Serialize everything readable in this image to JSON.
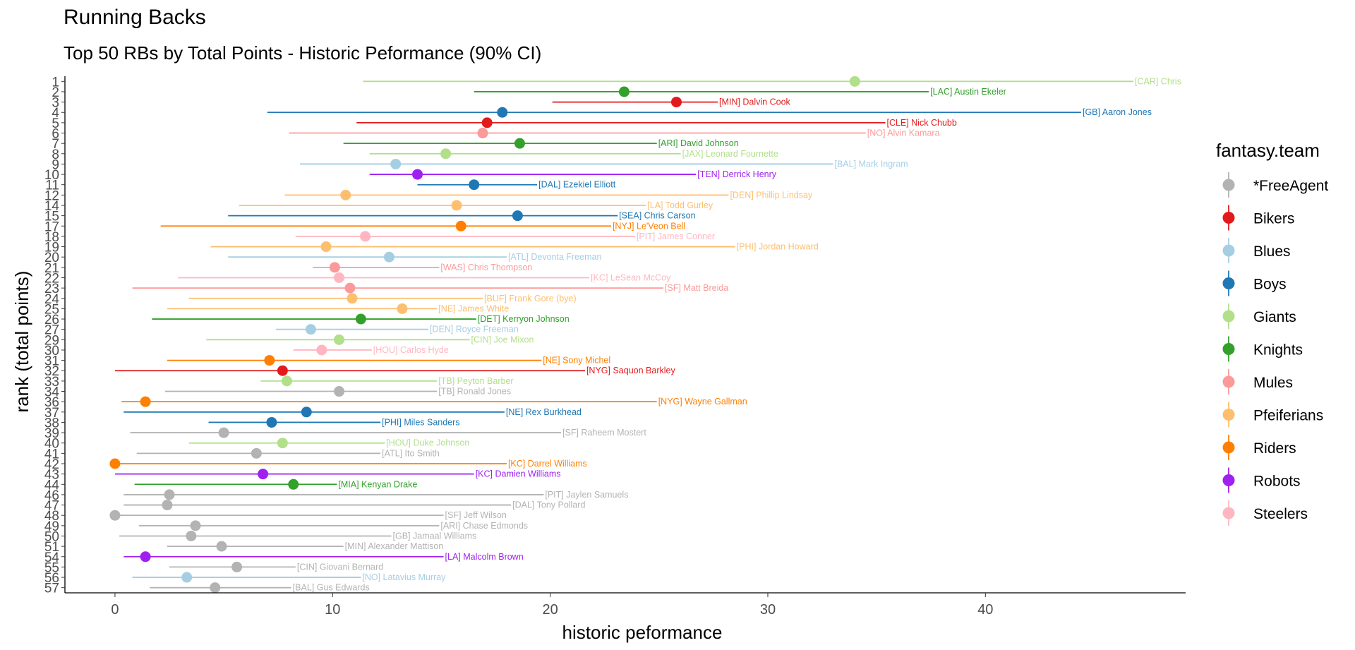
{
  "title": "Running Backs",
  "subtitle": "Top 50 RBs by Total Points - Historic Peformance (90% CI)",
  "team_colors": {
    "*FreeAgent": "#B3B3B3",
    "Bikers": "#E31A1C",
    "Blues": "#A6CEE3",
    "Boys": "#1F78B4",
    "Giants": "#B2DF8A",
    "Knights": "#33A02C",
    "Mules": "#FB9A99",
    "Pfeiferians": "#FDBF6F",
    "Riders": "#FF7F00",
    "Robots": "#A020F0",
    "Steelers": "#FFB6C1"
  },
  "chart_data": {
    "type": "point-range",
    "xlabel": "historic peformance",
    "ylabel": "rank (total points)",
    "xlim": [
      -2.3,
      49.2
    ],
    "xticks": [
      0,
      10,
      20,
      30,
      40
    ],
    "grid": false,
    "legend_title": "fantasy.team",
    "legend_position": "right",
    "legend": [
      "*FreeAgent",
      "Bikers",
      "Blues",
      "Boys",
      "Giants",
      "Knights",
      "Mules",
      "Pfeiferians",
      "Riders",
      "Robots",
      "Steelers"
    ],
    "rank_ticks": [
      "1",
      "2",
      "3",
      "4",
      "5",
      "6",
      "7",
      "8",
      "9",
      "10",
      "11",
      "12",
      "14",
      "15",
      "17",
      "18",
      "19",
      "20",
      "21",
      "22",
      "23",
      "24",
      "25",
      "26",
      "27",
      "29",
      "30",
      "31",
      "32",
      "33",
      "34",
      "36",
      "37",
      "38",
      "39",
      "40",
      "41",
      "42",
      "43",
      "44",
      "46",
      "47",
      "48",
      "49",
      "50",
      "51",
      "54",
      "55",
      "56",
      "57"
    ],
    "players": [
      {
        "rank": "1",
        "label": "[CAR] Christian McCaffrey",
        "display": "[CAR] Chris",
        "team": "Giants",
        "mean": 34.0,
        "low": 11.4,
        "high": 46.8
      },
      {
        "rank": "2",
        "label": "[LAC] Austin Ekeler",
        "team": "Knights",
        "mean": 23.4,
        "low": 16.5,
        "high": 37.4
      },
      {
        "rank": "3",
        "label": "[MIN] Dalvin Cook",
        "team": "Bikers",
        "mean": 25.8,
        "low": 20.1,
        "high": 27.7
      },
      {
        "rank": "4",
        "label": "[GB] Aaron Jones",
        "team": "Boys",
        "mean": 17.8,
        "low": 7.0,
        "high": 44.4
      },
      {
        "rank": "5",
        "label": "[CLE] Nick Chubb",
        "team": "Bikers",
        "mean": 17.1,
        "low": 11.1,
        "high": 35.4
      },
      {
        "rank": "6",
        "label": "[NO] Alvin Kamara",
        "team": "Mules",
        "mean": 16.9,
        "low": 8.0,
        "high": 34.5
      },
      {
        "rank": "7",
        "label": "[ARI] David Johnson",
        "team": "Knights",
        "mean": 18.6,
        "low": 10.5,
        "high": 24.9
      },
      {
        "rank": "8",
        "label": "[JAX] Leonard Fournette",
        "team": "Giants",
        "mean": 15.2,
        "low": 11.7,
        "high": 26.0
      },
      {
        "rank": "9",
        "label": "[BAL] Mark Ingram",
        "team": "Blues",
        "mean": 12.9,
        "low": 8.5,
        "high": 33.0
      },
      {
        "rank": "10",
        "label": "[TEN] Derrick Henry",
        "team": "Robots",
        "mean": 13.9,
        "low": 11.7,
        "high": 26.7
      },
      {
        "rank": "11",
        "label": "[DAL] Ezekiel Elliott",
        "team": "Boys",
        "mean": 16.5,
        "low": 13.9,
        "high": 19.4
      },
      {
        "rank": "12",
        "label": "[DEN] Phillip Lindsay",
        "team": "Pfeiferians",
        "mean": 10.6,
        "low": 7.8,
        "high": 28.2
      },
      {
        "rank": "14",
        "label": "[LA] Todd Gurley",
        "team": "Pfeiferians",
        "mean": 15.7,
        "low": 5.7,
        "high": 24.4
      },
      {
        "rank": "15",
        "label": "[SEA] Chris Carson",
        "team": "Boys",
        "mean": 18.5,
        "low": 5.2,
        "high": 23.1
      },
      {
        "rank": "17",
        "label": "[NYJ] Le'Veon Bell",
        "team": "Riders",
        "mean": 15.9,
        "low": 2.1,
        "high": 22.8
      },
      {
        "rank": "18",
        "label": "[PIT] James Conner",
        "team": "Steelers",
        "mean": 11.5,
        "low": 8.3,
        "high": 23.9
      },
      {
        "rank": "19",
        "label": "[PHI] Jordan Howard",
        "team": "Pfeiferians",
        "mean": 9.7,
        "low": 4.4,
        "high": 28.5
      },
      {
        "rank": "20",
        "label": "[ATL] Devonta Freeman",
        "team": "Blues",
        "mean": 12.6,
        "low": 5.2,
        "high": 18.0
      },
      {
        "rank": "21",
        "label": "[WAS] Chris Thompson",
        "team": "Mules",
        "mean": 10.1,
        "low": 9.1,
        "high": 14.9
      },
      {
        "rank": "22",
        "label": "[KC] LeSean McCoy",
        "team": "Steelers",
        "mean": 10.3,
        "low": 2.9,
        "high": 21.8
      },
      {
        "rank": "23",
        "label": "[SF] Matt Breida",
        "team": "Mules",
        "mean": 10.8,
        "low": 0.8,
        "high": 25.2
      },
      {
        "rank": "24",
        "label": "[BUF] Frank Gore (bye)",
        "team": "Pfeiferians",
        "mean": 10.9,
        "low": 3.4,
        "high": 16.9
      },
      {
        "rank": "25",
        "label": "[NE] James White",
        "team": "Pfeiferians",
        "mean": 13.2,
        "low": 2.4,
        "high": 14.8
      },
      {
        "rank": "26",
        "label": "[DET] Kerryon Johnson",
        "team": "Knights",
        "mean": 11.3,
        "low": 1.7,
        "high": 16.6
      },
      {
        "rank": "27",
        "label": "[DEN] Royce Freeman",
        "team": "Blues",
        "mean": 9.0,
        "low": 7.4,
        "high": 14.4
      },
      {
        "rank": "29",
        "label": "[CIN] Joe Mixon",
        "team": "Giants",
        "mean": 10.3,
        "low": 4.2,
        "high": 16.3
      },
      {
        "rank": "30",
        "label": "[HOU] Carlos Hyde",
        "team": "Steelers",
        "mean": 9.5,
        "low": 8.2,
        "high": 11.8
      },
      {
        "rank": "31",
        "label": "[NE] Sony Michel",
        "team": "Riders",
        "mean": 7.1,
        "low": 2.4,
        "high": 19.6
      },
      {
        "rank": "32",
        "label": "[NYG] Saquon Barkley",
        "team": "Bikers",
        "mean": 7.7,
        "low": 0.0,
        "high": 21.6
      },
      {
        "rank": "33",
        "label": "[TB] Peyton Barber",
        "team": "Giants",
        "mean": 7.9,
        "low": 6.7,
        "high": 14.8
      },
      {
        "rank": "34",
        "label": "[TB] Ronald Jones",
        "team": "*FreeAgent",
        "mean": 10.3,
        "low": 2.3,
        "high": 14.8
      },
      {
        "rank": "36",
        "label": "[NYG] Wayne Gallman",
        "team": "Riders",
        "mean": 1.4,
        "low": 0.3,
        "high": 24.9
      },
      {
        "rank": "37",
        "label": "[NE] Rex Burkhead",
        "team": "Boys",
        "mean": 8.8,
        "low": 0.4,
        "high": 17.9
      },
      {
        "rank": "38",
        "label": "[PHI] Miles Sanders",
        "team": "Boys",
        "mean": 7.2,
        "low": 4.3,
        "high": 12.2
      },
      {
        "rank": "39",
        "label": "[SF] Raheem Mostert",
        "team": "*FreeAgent",
        "mean": 5.0,
        "low": 0.7,
        "high": 20.5
      },
      {
        "rank": "40",
        "label": "[HOU] Duke Johnson",
        "team": "Giants",
        "mean": 7.7,
        "low": 3.4,
        "high": 12.4
      },
      {
        "rank": "41",
        "label": "[ATL] Ito Smith",
        "team": "*FreeAgent",
        "mean": 6.5,
        "low": 1.0,
        "high": 12.2
      },
      {
        "rank": "42",
        "label": "[KC] Darrel Williams",
        "team": "Riders",
        "mean": 0.0,
        "low": 0.0,
        "high": 18.0
      },
      {
        "rank": "43",
        "label": "[KC] Damien Williams",
        "team": "Robots",
        "mean": 6.8,
        "low": 0.0,
        "high": 16.5
      },
      {
        "rank": "44",
        "label": "[MIA] Kenyan Drake",
        "team": "Knights",
        "mean": 8.2,
        "low": 0.9,
        "high": 10.2
      },
      {
        "rank": "46",
        "label": "[PIT] Jaylen Samuels",
        "team": "*FreeAgent",
        "mean": 2.5,
        "low": 0.4,
        "high": 19.7
      },
      {
        "rank": "47",
        "label": "[DAL] Tony Pollard",
        "team": "*FreeAgent",
        "mean": 2.4,
        "low": 0.4,
        "high": 18.2
      },
      {
        "rank": "48",
        "label": "[SF] Jeff Wilson",
        "team": "*FreeAgent",
        "mean": 0.0,
        "low": 0.0,
        "high": 15.1
      },
      {
        "rank": "49",
        "label": "[ARI] Chase Edmonds",
        "team": "*FreeAgent",
        "mean": 3.7,
        "low": 1.1,
        "high": 14.9
      },
      {
        "rank": "50",
        "label": "[GB] Jamaal Williams",
        "team": "*FreeAgent",
        "mean": 3.5,
        "low": 0.2,
        "high": 12.7
      },
      {
        "rank": "51",
        "label": "[MIN] Alexander Mattison",
        "team": "*FreeAgent",
        "mean": 4.9,
        "low": 2.4,
        "high": 10.5
      },
      {
        "rank": "54",
        "label": "[LA] Malcolm Brown",
        "team": "Robots",
        "mean": 1.4,
        "low": 0.4,
        "high": 15.1
      },
      {
        "rank": "55",
        "label": "[CIN] Giovani Bernard",
        "team": "*FreeAgent",
        "mean": 5.6,
        "low": 2.5,
        "high": 8.3
      },
      {
        "rank": "56",
        "label": "[NO] Latavius Murray",
        "team": "Blues",
        "mean": 3.3,
        "low": 0.8,
        "high": 11.3
      },
      {
        "rank": "57",
        "label": "[BAL] Gus Edwards",
        "team": "*FreeAgent",
        "mean": 4.6,
        "low": 1.6,
        "high": 8.1
      }
    ]
  }
}
